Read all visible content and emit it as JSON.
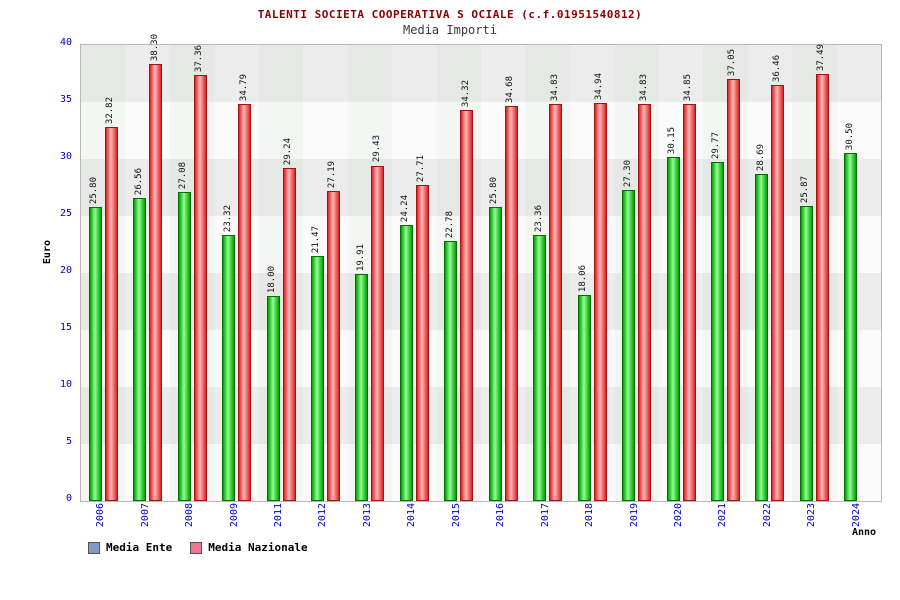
{
  "chart_data": {
    "type": "bar",
    "title": "TALENTI SOCIETA COOPERATIVA S OCIALE (c.f.01951540812)",
    "subtitle": "Media Importi",
    "xlabel": "Anno",
    "ylabel": "Euro",
    "ylim": [
      0,
      40
    ],
    "ytick_step": 5,
    "grid": "horizontal-bands",
    "legend_position": "bottom-left",
    "categories": [
      "2006",
      "2007",
      "2008",
      "2009",
      "2011",
      "2012",
      "2013",
      "2014",
      "2015",
      "2016",
      "2017",
      "2018",
      "2019",
      "2020",
      "2021",
      "2022",
      "2023",
      "2024"
    ],
    "series": [
      {
        "name": "Media Ente",
        "legend_color": "#7d9ccd",
        "bar_edge": "#00a000",
        "bar_center": "#90ff90",
        "bar_border": "#007000",
        "values": [
          25.8,
          26.56,
          27.08,
          23.32,
          18.0,
          21.47,
          19.91,
          24.24,
          22.78,
          25.8,
          23.36,
          18.06,
          27.3,
          30.15,
          29.77,
          28.69,
          25.87,
          30.5
        ]
      },
      {
        "name": "Media Nazionale",
        "legend_color": "#f2758d",
        "bar_edge": "#d92525",
        "bar_center": "#ffb6b6",
        "bar_border": "#a51111",
        "values": [
          32.82,
          38.3,
          37.36,
          34.79,
          29.24,
          27.19,
          29.43,
          27.71,
          34.32,
          34.68,
          34.83,
          34.94,
          34.83,
          34.85,
          37.05,
          36.46,
          37.49,
          null
        ]
      }
    ],
    "colors": {
      "title": "#8b0000",
      "axis_text": "#0000cd"
    }
  }
}
